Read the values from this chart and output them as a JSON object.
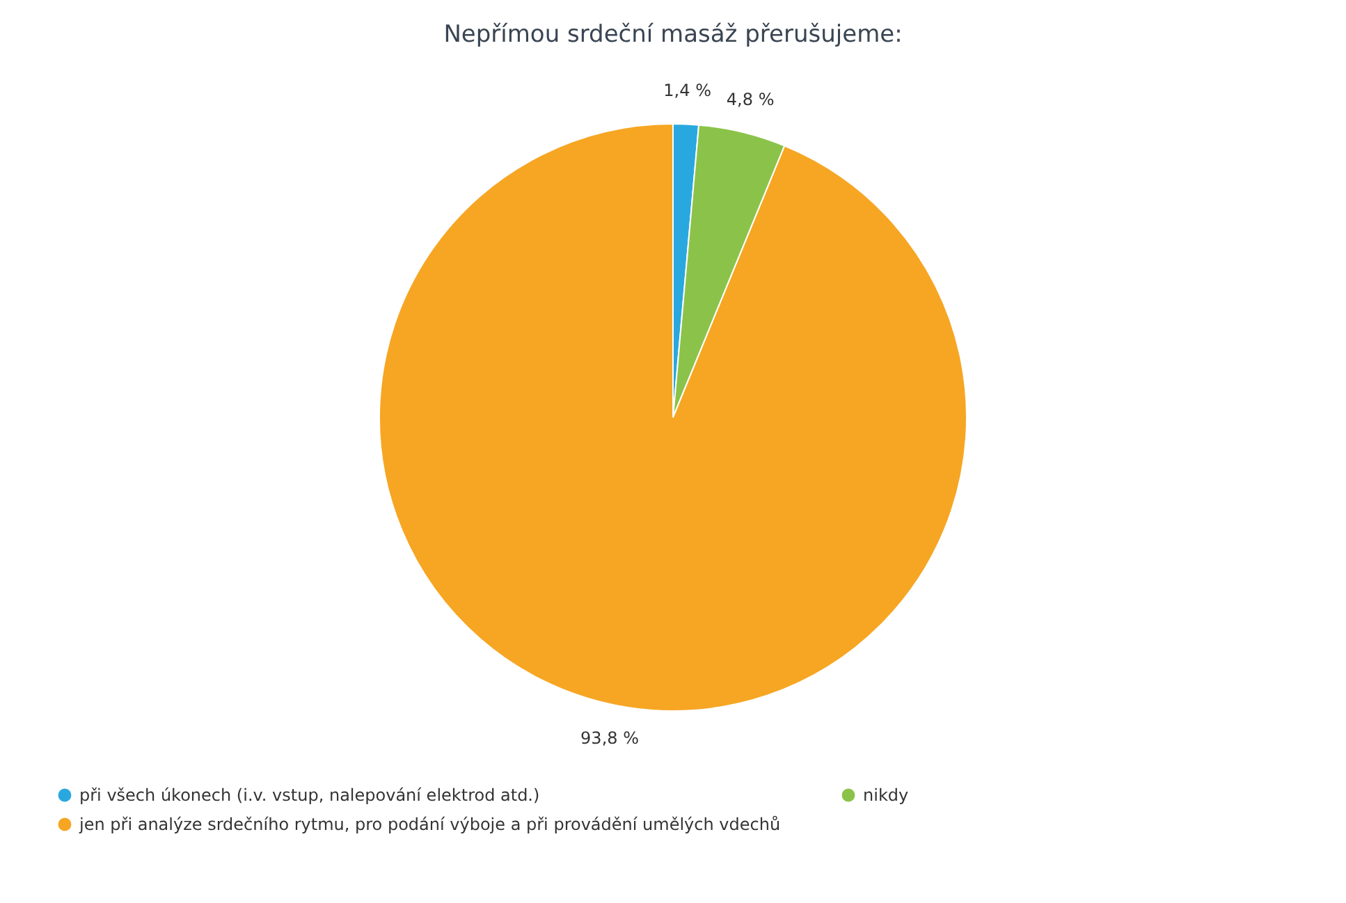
{
  "chart_data": {
    "type": "pie",
    "title": "Nepřímou srdeční masáž přerušujeme:",
    "categories": [
      "při všech úkonech (i.v. vstup, nalepování elektrod atd.)",
      "nikdy",
      "jen při analýze srdečního rytmu, pro podání výboje a při provádění umělých vdechů"
    ],
    "values": [
      1.4,
      4.8,
      93.8
    ],
    "value_labels": [
      "1,4 %",
      "4,8 %",
      "93,8 %"
    ],
    "colors": [
      "#29a8df",
      "#8bc34a",
      "#f6a623"
    ],
    "legend": "bottom"
  }
}
